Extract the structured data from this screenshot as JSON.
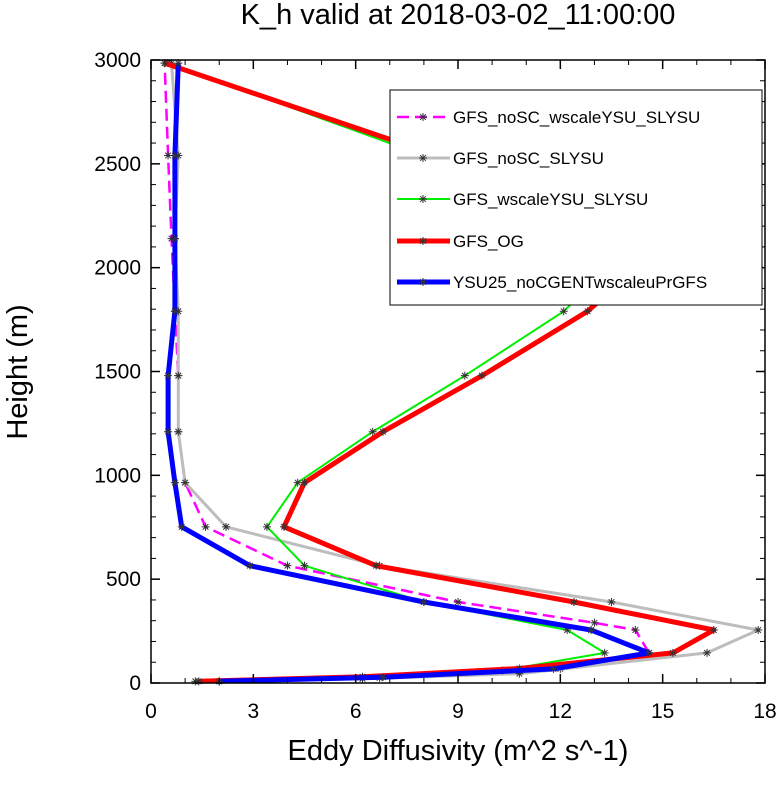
{
  "chart_data": {
    "type": "line",
    "title": "K_h valid at 2018-03-02_11:00:00",
    "xlabel": "Eddy Diffusivity (m^2 s^-1)",
    "ylabel": "Height (m)",
    "xlim": [
      0,
      18
    ],
    "ylim": [
      0,
      3000
    ],
    "xticks": [
      0,
      3,
      6,
      9,
      12,
      15,
      18
    ],
    "yticks": [
      0,
      500,
      1000,
      1500,
      2000,
      2500,
      3000
    ],
    "grid": false,
    "legend_position": "top-right",
    "series": [
      {
        "name": "GFS_noSC_wscaleYSU_SLYSU",
        "color": "#ff00ff",
        "style": "dashed",
        "width": 2.5,
        "points": [
          [
            2.0,
            8
          ],
          [
            6.7,
            25
          ],
          [
            12.0,
            68
          ],
          [
            14.6,
            145
          ],
          [
            14.2,
            255
          ],
          [
            13.0,
            290
          ],
          [
            9.0,
            390
          ],
          [
            4.0,
            565
          ],
          [
            1.6,
            752
          ],
          [
            1.0,
            965
          ],
          [
            0.8,
            1210
          ],
          [
            0.8,
            1480
          ],
          [
            0.7,
            1790
          ],
          [
            0.6,
            2140
          ],
          [
            0.5,
            2540
          ],
          [
            0.4,
            2985
          ]
        ]
      },
      {
        "name": "GFS_noSC_SLYSU",
        "color": "#bdbdbd",
        "style": "solid",
        "width": 3,
        "points": [
          [
            2.0,
            8
          ],
          [
            6.2,
            20
          ],
          [
            10.8,
            45
          ],
          [
            16.3,
            145
          ],
          [
            17.8,
            255
          ],
          [
            13.5,
            390
          ],
          [
            6.7,
            565
          ],
          [
            2.2,
            752
          ],
          [
            1.0,
            965
          ],
          [
            0.8,
            1210
          ],
          [
            0.8,
            1480
          ],
          [
            0.8,
            1790
          ],
          [
            0.7,
            2140
          ],
          [
            0.8,
            2540
          ],
          [
            0.6,
            2985
          ]
        ]
      },
      {
        "name": "GFS_wscaleYSU_SLYSU",
        "color": "#00ee00",
        "style": "solid",
        "width": 2,
        "points": [
          [
            1.3,
            8
          ],
          [
            10.3,
            60
          ],
          [
            13.3,
            145
          ],
          [
            12.2,
            255
          ],
          [
            8.0,
            390
          ],
          [
            4.5,
            565
          ],
          [
            3.4,
            752
          ],
          [
            4.3,
            965
          ],
          [
            6.5,
            1210
          ],
          [
            9.2,
            1480
          ],
          [
            12.1,
            1790
          ],
          [
            14.3,
            2140
          ],
          [
            8.0,
            2540
          ],
          [
            0.5,
            2985
          ]
        ]
      },
      {
        "name": "GFS_OG",
        "color": "#ff0000",
        "style": "solid",
        "width": 5,
        "points": [
          [
            1.4,
            8
          ],
          [
            6.2,
            30
          ],
          [
            10.8,
            70
          ],
          [
            15.3,
            145
          ],
          [
            16.5,
            255
          ],
          [
            12.4,
            390
          ],
          [
            6.6,
            565
          ],
          [
            3.9,
            752
          ],
          [
            4.5,
            965
          ],
          [
            6.8,
            1210
          ],
          [
            9.7,
            1480
          ],
          [
            12.8,
            1790
          ],
          [
            15.2,
            2140
          ],
          [
            8.4,
            2540
          ],
          [
            0.4,
            2985
          ]
        ]
      },
      {
        "name": "YSU25_noCGENTwscaleuPrGFS",
        "color": "#0000ff",
        "style": "solid",
        "width": 5,
        "points": [
          [
            2.0,
            8
          ],
          [
            6.8,
            28
          ],
          [
            11.8,
            68
          ],
          [
            14.6,
            145
          ],
          [
            12.9,
            255
          ],
          [
            8.0,
            390
          ],
          [
            2.9,
            565
          ],
          [
            0.9,
            752
          ],
          [
            0.7,
            965
          ],
          [
            0.5,
            1210
          ],
          [
            0.5,
            1480
          ],
          [
            0.7,
            1790
          ],
          [
            0.7,
            2140
          ],
          [
            0.7,
            2540
          ],
          [
            0.8,
            2985
          ]
        ]
      }
    ]
  }
}
